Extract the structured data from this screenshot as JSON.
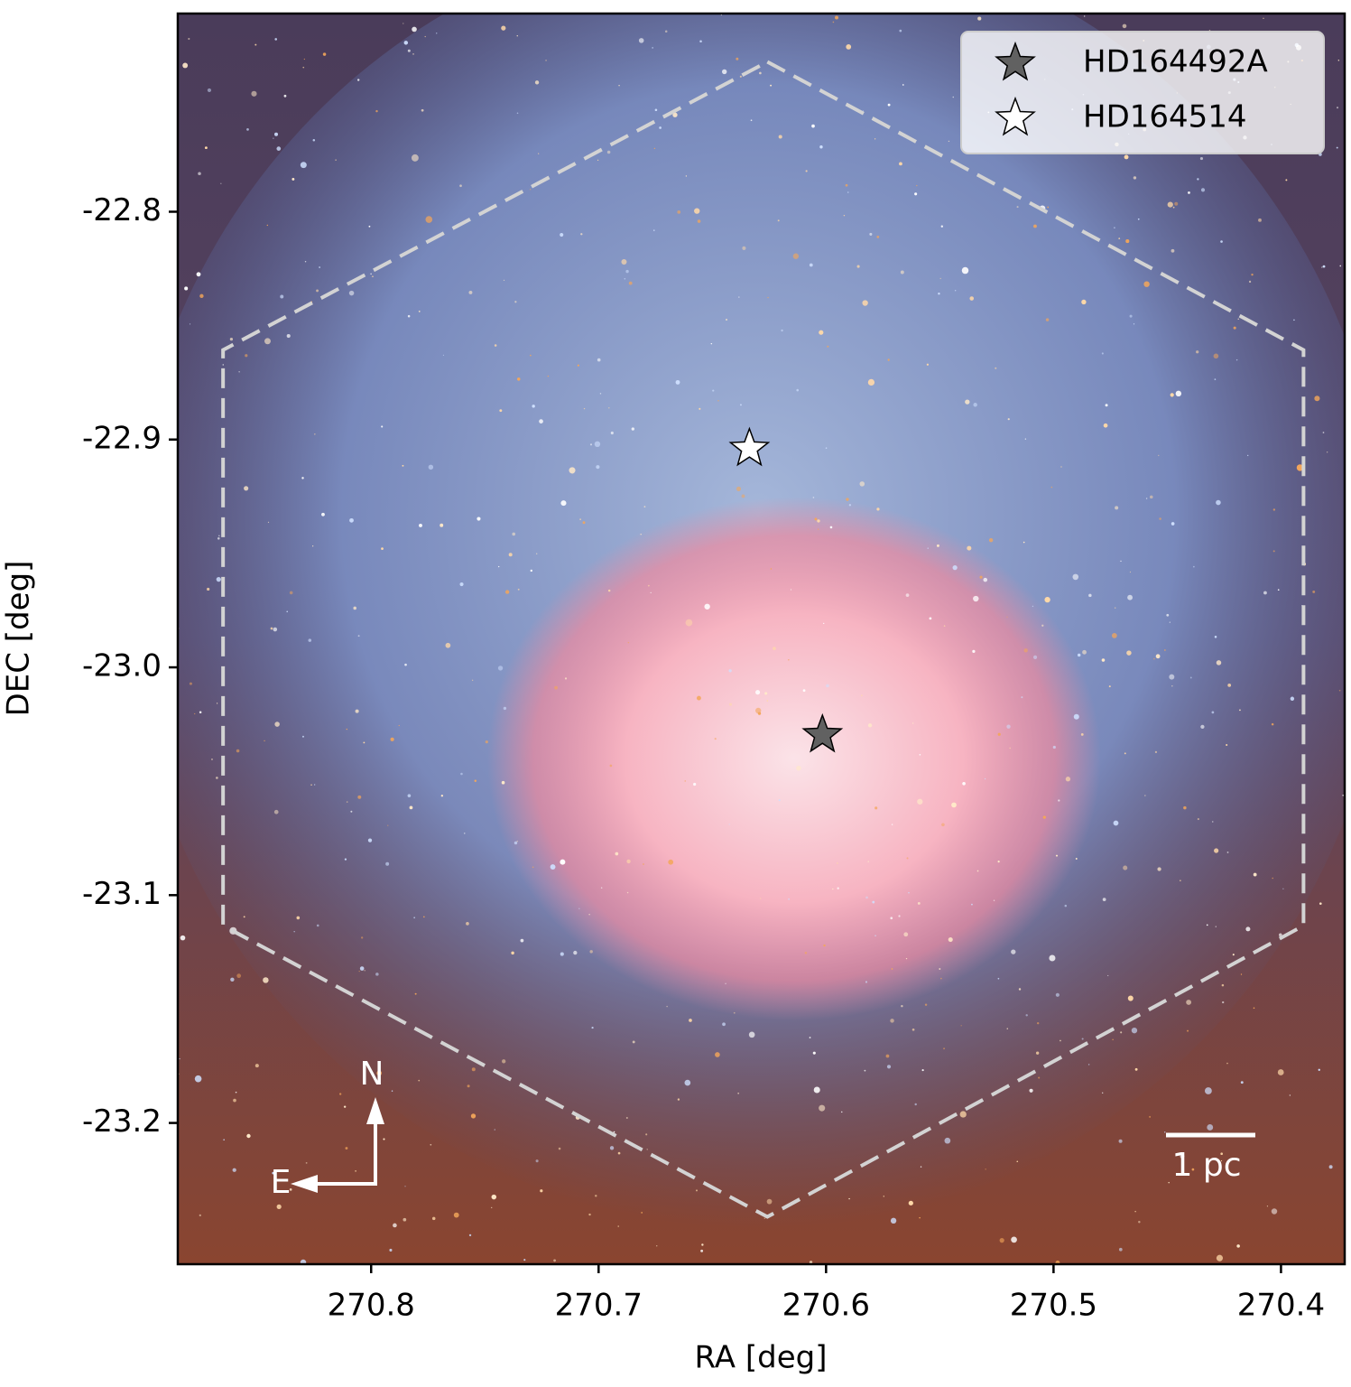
{
  "chart_data": {
    "type": "scatter",
    "xlabel": "RA [deg]",
    "ylabel": "DEC [deg]",
    "xlim": [
      270.885,
      270.372
    ],
    "ylim": [
      -23.262,
      -22.713
    ],
    "xticks": [
      270.8,
      270.7,
      270.6,
      270.5,
      270.4
    ],
    "yticks": [
      -22.8,
      -22.9,
      {
        "value": -23.0,
        "label": "-23.0"
      },
      -23.1,
      -23.2
    ],
    "legend": "upper right",
    "series": [
      {
        "name": "HD164492A",
        "color": "#616161",
        "x": [
          270.6016
        ],
        "y": [
          -23.0297
        ]
      },
      {
        "name": "HD164514",
        "color": "#ffffff",
        "x": [
          270.6337
        ],
        "y": [
          -22.904
        ]
      }
    ],
    "footprint": {
      "color": "#d3d3d3",
      "x": [
        270.6258,
        270.3901,
        270.3901,
        270.6258,
        270.8651,
        270.8651
      ],
      "y": [
        -22.7342,
        -22.8607,
        -23.1134,
        -23.2412,
        -23.1134,
        -22.8607
      ]
    },
    "annotations": {
      "scale_bar": "1 pc",
      "north": "N",
      "east": "E"
    }
  }
}
